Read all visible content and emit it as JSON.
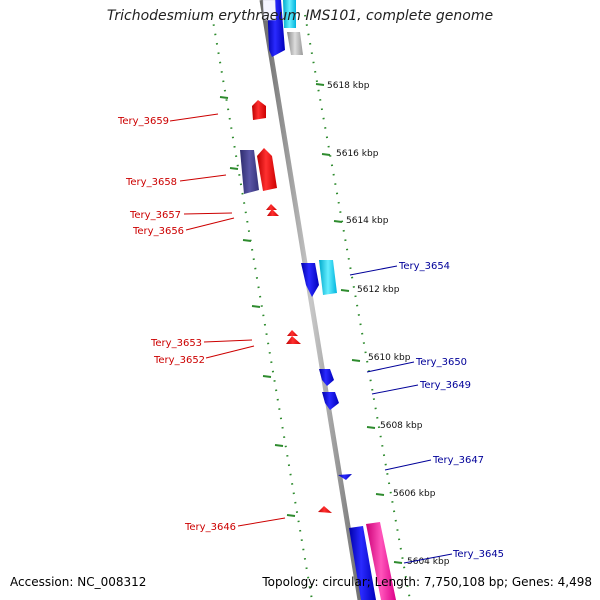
{
  "title": "Trichodesmium erythraeum IMS101, complete genome",
  "footer": {
    "accession_label": "Accession: NC_008312",
    "topology_label": "Topology: circular; Length: 7,750,108 bp; Genes: 4,498"
  },
  "colors": {
    "reverse_label": "#cc0000",
    "forward_label": "#000099",
    "tick": "#2e8b2e",
    "backbone": "#888888"
  },
  "ticks": [
    {
      "label": "5618 kbp",
      "kbp": 5618
    },
    {
      "label": "5616 kbp",
      "kbp": 5616
    },
    {
      "label": "5614 kbp",
      "kbp": 5614
    },
    {
      "label": "5612 kbp",
      "kbp": 5612
    },
    {
      "label": "5610 kbp",
      "kbp": 5610
    },
    {
      "label": "5608 kbp",
      "kbp": 5608
    },
    {
      "label": "5606 kbp",
      "kbp": 5606
    },
    {
      "label": "5604 kbp",
      "kbp": 5604
    }
  ],
  "genes_reverse": [
    {
      "label": "Tery_3659",
      "color": "#ee1111"
    },
    {
      "label": "Tery_3658",
      "color": "#ee1111"
    },
    {
      "label": "Tery_3657",
      "color": "#ee1111"
    },
    {
      "label": "Tery_3656",
      "color": "#ee1111"
    },
    {
      "label": "Tery_3653",
      "color": "#ee1111"
    },
    {
      "label": "Tery_3652",
      "color": "#ee1111"
    },
    {
      "label": "Tery_3646",
      "color": "#ee1111"
    }
  ],
  "genes_forward": [
    {
      "label": "Tery_3654",
      "color": "#1111dd"
    },
    {
      "label": "Tery_3650",
      "color": "#1111dd"
    },
    {
      "label": "Tery_3649",
      "color": "#1111dd"
    },
    {
      "label": "Tery_3647",
      "color": "#1111dd"
    },
    {
      "label": "Tery_3645",
      "color": "#1111dd"
    }
  ]
}
